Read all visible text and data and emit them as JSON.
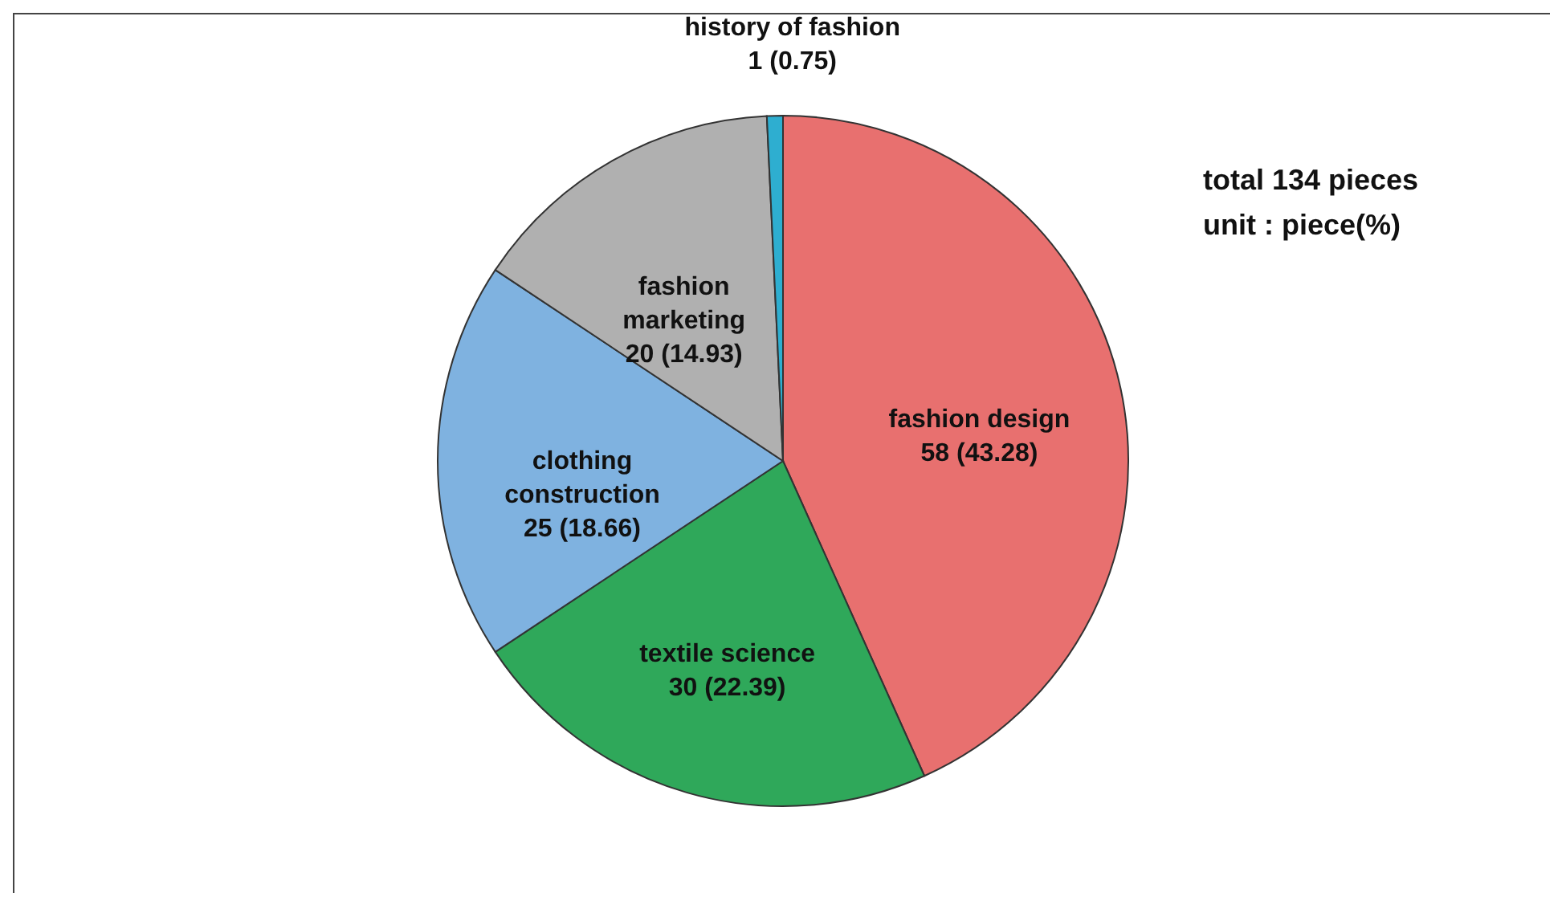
{
  "chart_data": {
    "type": "pie",
    "categories": [
      "fashion design",
      "textile science",
      "clothing construction",
      "fashion marketing",
      "history of fashion"
    ],
    "values": [
      58,
      30,
      25,
      20,
      1
    ],
    "value_labels": [
      "58 (43.28)",
      "30 (22.39)",
      "25 (18.66)",
      "20 (14.93)",
      "1 (0.75)"
    ],
    "colors": [
      "#e8706f",
      "#2fa85a",
      "#7fb2e0",
      "#b0b0b0",
      "#2eaed0"
    ],
    "annotations": [
      "total 134 pieces",
      "unit : piece(%)"
    ],
    "legend": false
  }
}
